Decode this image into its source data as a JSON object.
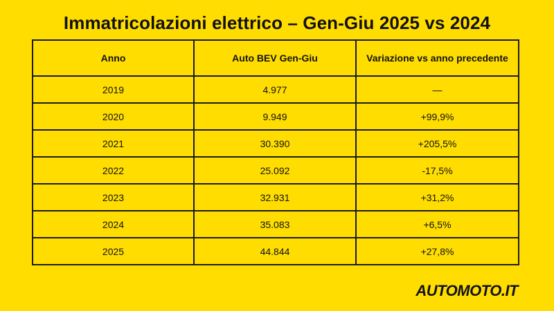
{
  "title": "Immatricolazioni elettrico – Gen-Giu 2025 vs 2024",
  "brand": "AUTOMOTO.IT",
  "colors": {
    "background": "#FFDD00",
    "text": "#111111",
    "border": "#1a1a1a"
  },
  "chart_data": {
    "type": "table",
    "title": "Immatricolazioni elettrico – Gen-Giu 2025 vs 2024",
    "columns": [
      "Anno",
      "Auto BEV Gen-Giu",
      "Variazione vs anno precedente"
    ],
    "rows": [
      [
        "2019",
        "4.977",
        "—"
      ],
      [
        "2020",
        "9.949",
        "+99,9%"
      ],
      [
        "2021",
        "30.390",
        "+205,5%"
      ],
      [
        "2022",
        "25.092",
        "-17,5%"
      ],
      [
        "2023",
        "32.931",
        "+31,2%"
      ],
      [
        "2024",
        "35.083",
        "+6,5%"
      ],
      [
        "2025",
        "44.844",
        "+27,8%"
      ]
    ]
  }
}
